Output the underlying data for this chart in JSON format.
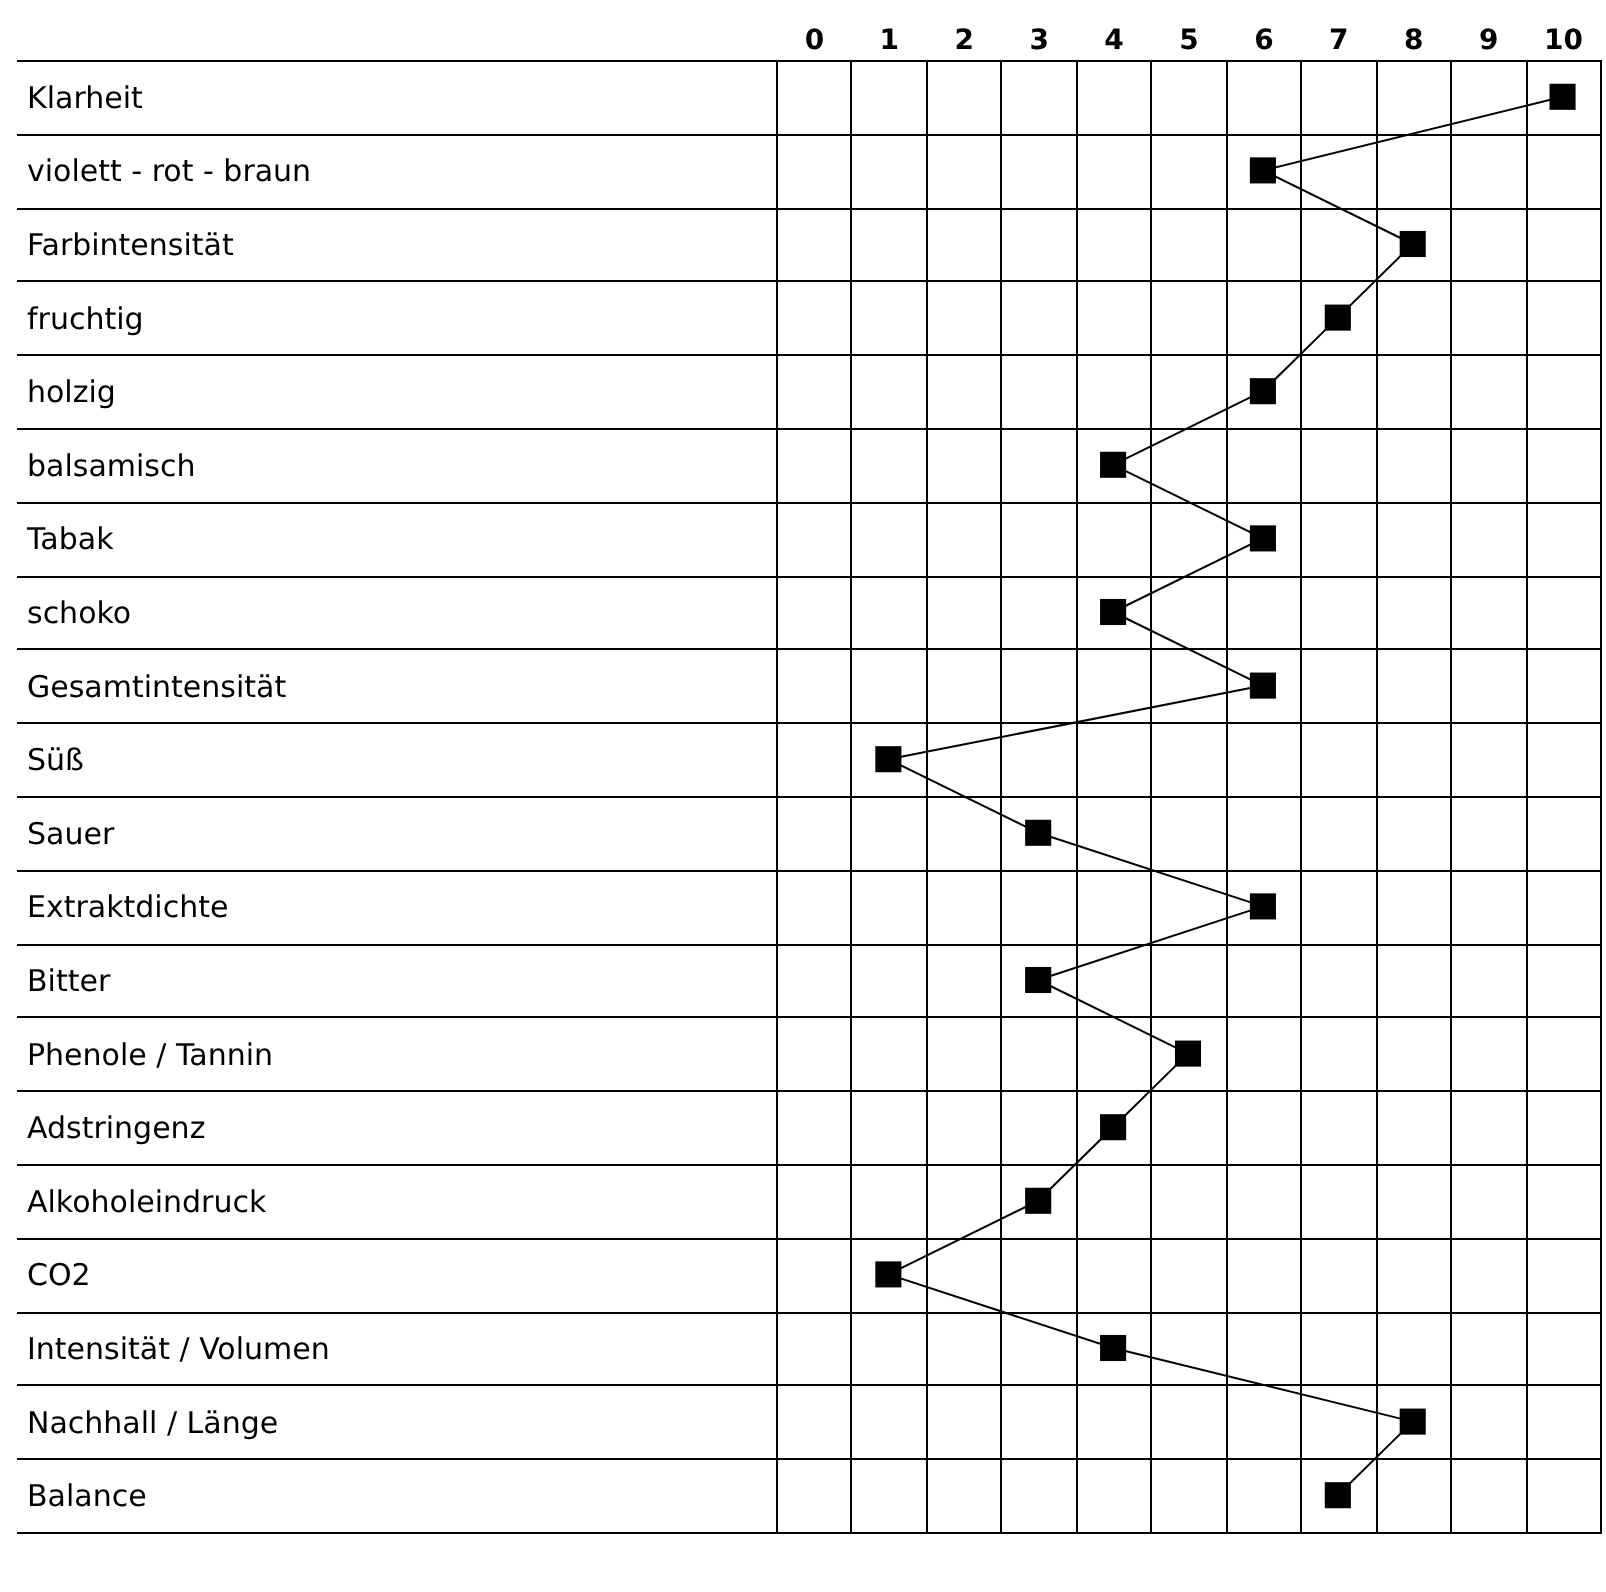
{
  "chart_data": {
    "type": "line",
    "orientation": "horizontal",
    "categories": [
      "Klarheit",
      "violett - rot - braun",
      "Farbintensität",
      "fruchtig",
      "holzig",
      "balsamisch",
      "Tabak",
      "schoko",
      "Gesamtintensität",
      "Süß",
      "Sauer",
      "Extraktdichte",
      "Bitter",
      "Phenole / Tannin",
      "Adstringenz",
      "Alkoholeindruck",
      "CO2",
      "Intensität / Volumen",
      "Nachhall / Länge",
      "Balance"
    ],
    "series": [
      {
        "axis": "x2",
        "color": "#000000",
        "values": [
          10,
          6,
          8,
          7,
          6,
          4,
          6,
          4,
          6,
          1,
          3,
          6,
          3,
          5,
          4,
          3,
          1,
          4,
          8,
          7
        ]
      }
    ],
    "x2lim": [
      -0.5,
      10.5
    ],
    "x2ticks": [
      0,
      1,
      2,
      3,
      4,
      5,
      6,
      7,
      8,
      9,
      10
    ],
    "grid": true,
    "marker": "square",
    "line_style": "solid"
  }
}
